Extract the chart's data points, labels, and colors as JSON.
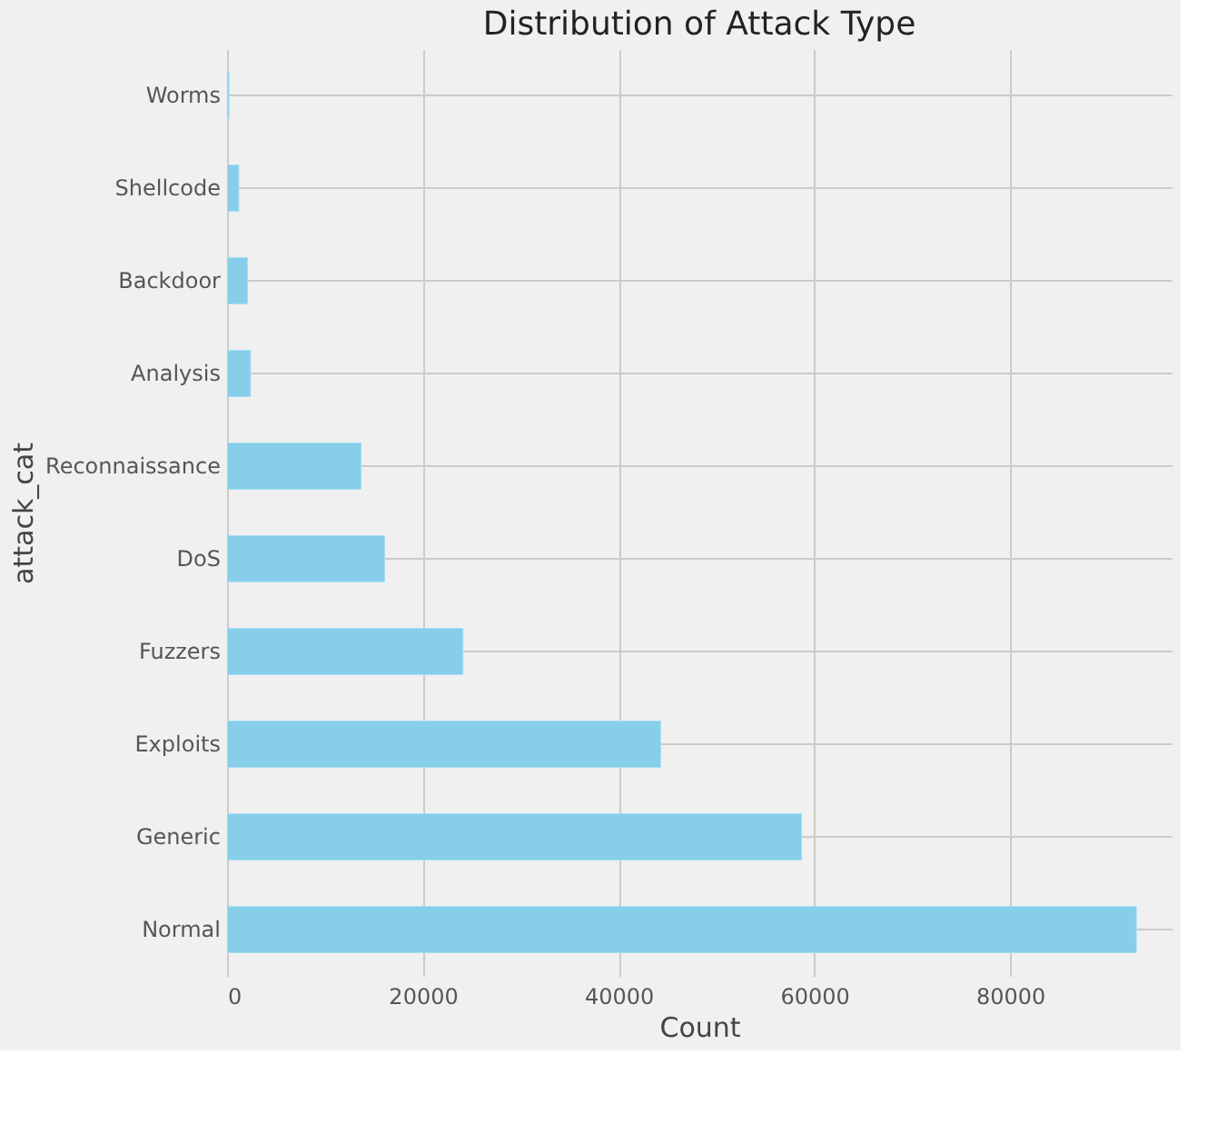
{
  "chart_data": {
    "type": "bar",
    "orientation": "horizontal",
    "title": "Distribution of Attack Type",
    "xlabel": "Count",
    "ylabel": "attack_cat",
    "categories": [
      "Worms",
      "Shellcode",
      "Backdoor",
      "Analysis",
      "Reconnaissance",
      "DoS",
      "Fuzzers",
      "Exploits",
      "Generic",
      "Normal"
    ],
    "values": [
      200,
      1200,
      2100,
      2400,
      13700,
      16100,
      24100,
      44300,
      58700,
      92900
    ],
    "color": "#87ceeb",
    "xlim": [
      0,
      96500
    ],
    "xticks": [
      0,
      20000,
      40000,
      60000,
      80000
    ],
    "grid": true
  }
}
